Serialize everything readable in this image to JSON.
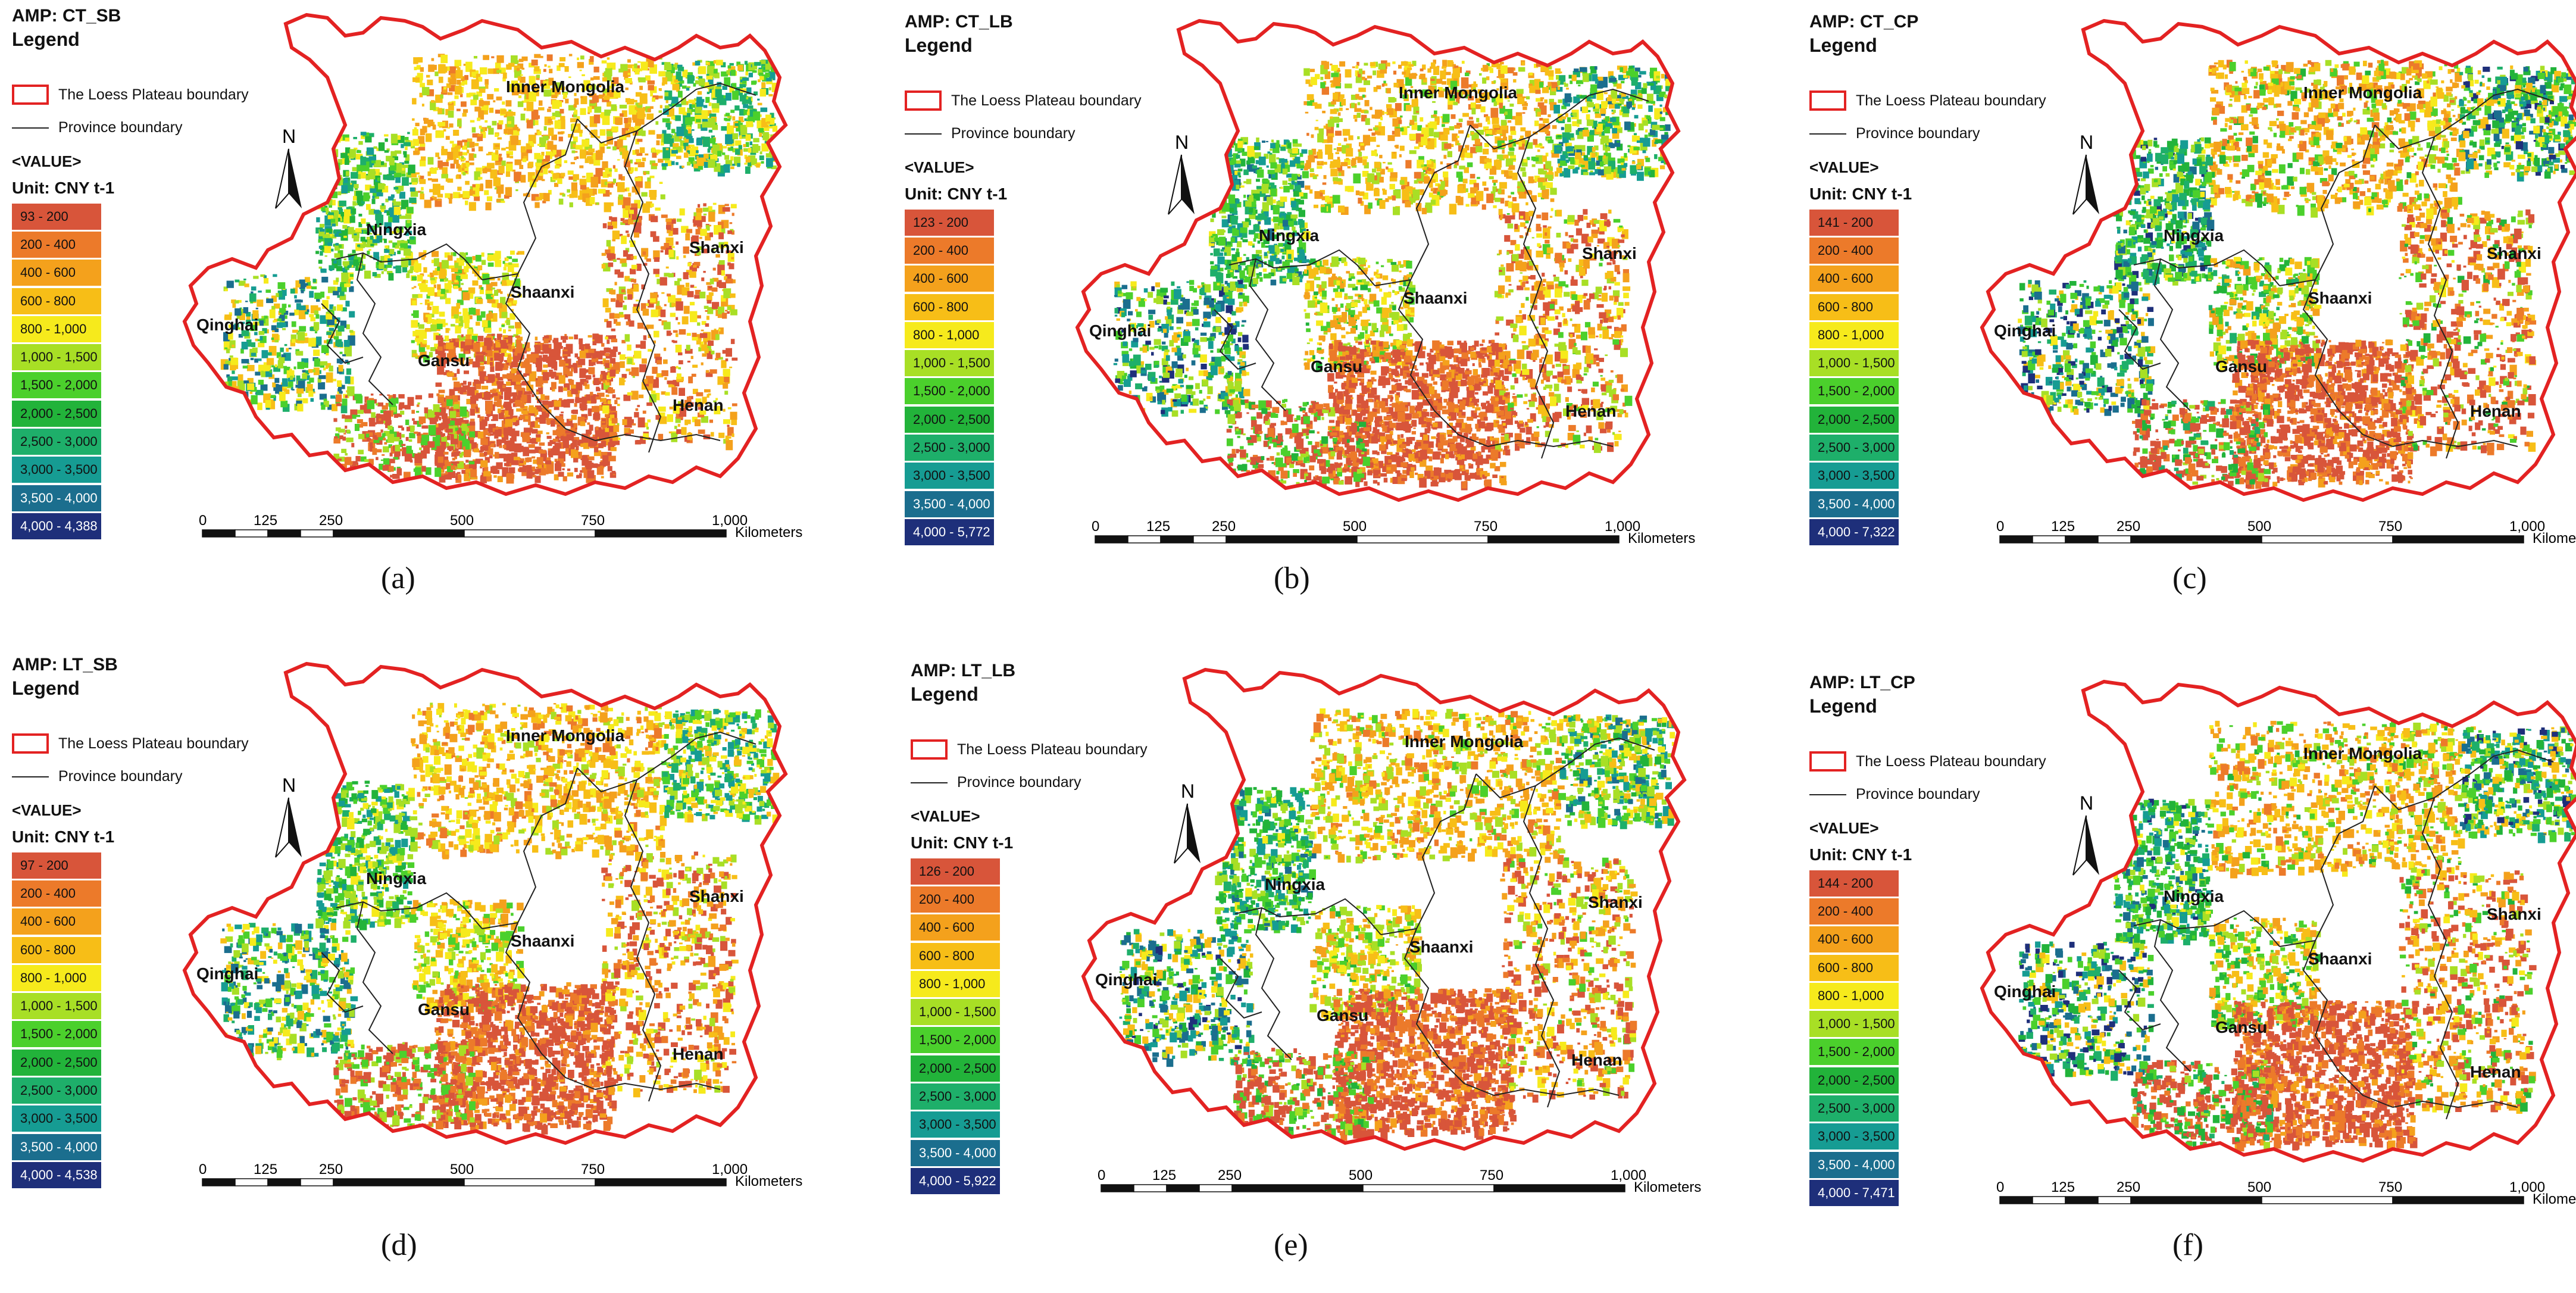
{
  "legend_title": "Legend",
  "loess_label": "The Loess Plateau boundary",
  "province_label": "Province boundary",
  "value_header": "<VALUE>",
  "unit": "Unit: CNY t-1",
  "north": "N",
  "scale": {
    "ticks": [
      "0",
      "125",
      "250",
      "500",
      "750",
      "1,000"
    ],
    "unit": "Kilometers"
  },
  "colors": {
    "loess_boundary": "#e32222",
    "province_boundary": "#222222",
    "classes": [
      "#d8553a",
      "#ec7a2a",
      "#f4a11c",
      "#f7be17",
      "#f6ea1c",
      "#a8df25",
      "#4bd02c",
      "#22b33a",
      "#1eaf6a",
      "#169c93",
      "#1b6e8e",
      "#1e2f7a"
    ]
  },
  "provinces": [
    "Inner Mongolia",
    "Ningxia",
    "Shaanxi",
    "Shanxi",
    "Qinghai",
    "Gansu",
    "Henan"
  ],
  "panels": [
    {
      "id": "a",
      "title": "AMP: CT_SB",
      "label": "(a)",
      "classes": [
        "93 - 200",
        "200 - 400",
        "400 - 600",
        "600 - 800",
        "800 - 1,000",
        "1,000 - 1,500",
        "1,500 - 2,000",
        "2,000 - 2,500",
        "2,500 - 3,000",
        "3,000 - 3,500",
        "3,500 - 4,000",
        "4,000 - 4,388"
      ]
    },
    {
      "id": "b",
      "title": "AMP: CT_LB",
      "label": "(b)",
      "classes": [
        "123 - 200",
        "200 - 400",
        "400 - 600",
        "600 - 800",
        "800 - 1,000",
        "1,000 - 1,500",
        "1,500 - 2,000",
        "2,000 - 2,500",
        "2,500 - 3,000",
        "3,000 - 3,500",
        "3,500 - 4,000",
        "4,000 - 5,772"
      ]
    },
    {
      "id": "c",
      "title": "AMP: CT_CP",
      "label": "(c)",
      "classes": [
        "141 - 200",
        "200 - 400",
        "400 - 600",
        "600 - 800",
        "800 - 1,000",
        "1,000 - 1,500",
        "1,500 - 2,000",
        "2,000 - 2,500",
        "2,500 - 3,000",
        "3,000 - 3,500",
        "3,500 - 4,000",
        "4,000 - 7,322"
      ]
    },
    {
      "id": "d",
      "title": "AMP: LT_SB",
      "label": "(d)",
      "classes": [
        "97 - 200",
        "200 - 400",
        "400 - 600",
        "600 - 800",
        "800 - 1,000",
        "1,000 - 1,500",
        "1,500 - 2,000",
        "2,000 - 2,500",
        "2,500 - 3,000",
        "3,000 - 3,500",
        "3,500 - 4,000",
        "4,000 - 4,538"
      ]
    },
    {
      "id": "e",
      "title": "AMP: LT_LB",
      "label": "(e)",
      "classes": [
        "126 - 200",
        "200 - 400",
        "400 - 600",
        "600 - 800",
        "800 - 1,000",
        "1,000 - 1,500",
        "1,500 - 2,000",
        "2,000 - 2,500",
        "2,500 - 3,000",
        "3,000 - 3,500",
        "3,500 - 4,000",
        "4,000 - 5,922"
      ]
    },
    {
      "id": "f",
      "title": "AMP: LT_CP",
      "label": "(f)",
      "classes": [
        "144 - 200",
        "200 - 400",
        "400 - 600",
        "600 - 800",
        "800 - 1,000",
        "1,000 - 1,500",
        "1,500 - 2,000",
        "2,000 - 2,500",
        "2,500 - 3,000",
        "3,000 - 3,500",
        "3,500 - 4,000",
        "4,000 - 7,471"
      ]
    }
  ]
}
